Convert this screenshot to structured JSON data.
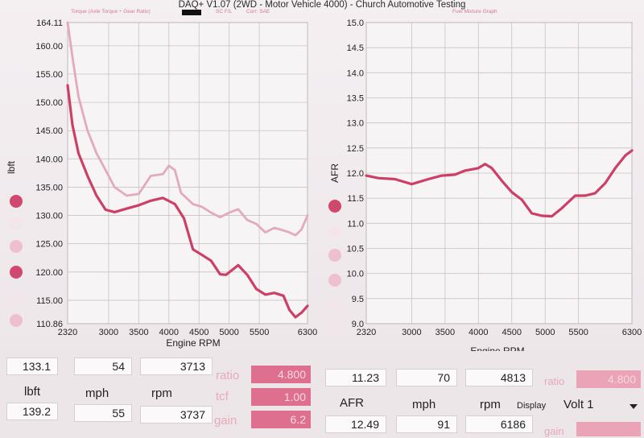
{
  "header": {
    "title": "DAQ+ V1.07 (2WD - Motor Vehicle 4000) - Church Automotive Testing",
    "left_subtitle": "Torque (Axle Torque ÷ Gear Ratio)",
    "left_subtitle2": "SC F/L",
    "left_subtitle3": "Corr: SAE",
    "right_subtitle": "Fuel Mixture Graph"
  },
  "colors": {
    "primary": "#cc3f66",
    "secondary": "#e2aabb",
    "accent_box": "#df6f8e",
    "grid": "#c9c2c5"
  },
  "chart_data": [
    {
      "type": "line",
      "ylabel": "lbft",
      "xlabel": "Engine RPM",
      "ylim": [
        110.86,
        164.11
      ],
      "xlim": [
        2320,
        6300
      ],
      "y_ticks": [
        "164.11",
        "160.00",
        "155.00",
        "150.00",
        "145.00",
        "140.00",
        "135.00",
        "130.00",
        "125.00",
        "120.00",
        "115.00",
        "110.86"
      ],
      "x_ticks": [
        "2320",
        "3000",
        "3500",
        "4000",
        "4500",
        "5000",
        "5500",
        "6300"
      ],
      "series": [
        {
          "color": "#cc3f66",
          "points": [
            [
              2320,
              153
            ],
            [
              2400,
              146
            ],
            [
              2500,
              141
            ],
            [
              2650,
              137
            ],
            [
              2800,
              133.5
            ],
            [
              2950,
              131
            ],
            [
              3100,
              130.6
            ],
            [
              3300,
              131.2
            ],
            [
              3500,
              131.8
            ],
            [
              3700,
              132.6
            ],
            [
              3900,
              133.1
            ],
            [
              4100,
              132
            ],
            [
              4250,
              129.5
            ],
            [
              4400,
              124
            ],
            [
              4550,
              123
            ],
            [
              4700,
              122
            ],
            [
              4850,
              119.6
            ],
            [
              4950,
              119.5
            ],
            [
              5150,
              121.2
            ],
            [
              5300,
              119.5
            ],
            [
              5450,
              117
            ],
            [
              5600,
              116
            ],
            [
              5750,
              116.3
            ],
            [
              5900,
              115.8
            ],
            [
              6000,
              113.3
            ],
            [
              6100,
              112
            ],
            [
              6200,
              112.8
            ],
            [
              6300,
              114
            ]
          ]
        },
        {
          "color": "#e2aabb",
          "points": [
            [
              2320,
              164.11
            ],
            [
              2400,
              158
            ],
            [
              2500,
              151
            ],
            [
              2650,
              145
            ],
            [
              2800,
              141
            ],
            [
              2950,
              138
            ],
            [
              3100,
              135
            ],
            [
              3300,
              133.5
            ],
            [
              3500,
              133.8
            ],
            [
              3700,
              137
            ],
            [
              3900,
              137.3
            ],
            [
              4000,
              138.8
            ],
            [
              4100,
              138
            ],
            [
              4200,
              134
            ],
            [
              4400,
              132
            ],
            [
              4550,
              131.5
            ],
            [
              4700,
              130.5
            ],
            [
              4850,
              129.7
            ],
            [
              5000,
              130.5
            ],
            [
              5150,
              131.1
            ],
            [
              5300,
              129.2
            ],
            [
              5450,
              128.5
            ],
            [
              5600,
              127
            ],
            [
              5750,
              127.8
            ],
            [
              5850,
              127.5
            ],
            [
              6000,
              127
            ],
            [
              6100,
              126.5
            ],
            [
              6200,
              127.5
            ],
            [
              6300,
              130
            ]
          ]
        }
      ]
    },
    {
      "type": "line",
      "ylabel": "AFR",
      "xlabel": "Engine RPM",
      "ylim": [
        9.0,
        15.0
      ],
      "xlim": [
        2320,
        6300
      ],
      "y_ticks": [
        "15.0",
        "14.5",
        "14.0",
        "13.5",
        "13.0",
        "12.5",
        "12.0",
        "11.5",
        "11.0",
        "10.5",
        "10.0",
        "9.5",
        "9.0"
      ],
      "x_ticks": [
        "2320",
        "3000",
        "3500",
        "4000",
        "4500",
        "5000",
        "5500",
        "6300"
      ],
      "series": [
        {
          "color": "#cc3f66",
          "points": [
            [
              2320,
              11.95
            ],
            [
              2500,
              11.9
            ],
            [
              2750,
              11.88
            ],
            [
              3000,
              11.78
            ],
            [
              3250,
              11.88
            ],
            [
              3450,
              11.95
            ],
            [
              3650,
              11.97
            ],
            [
              3800,
              12.05
            ],
            [
              4000,
              12.1
            ],
            [
              4100,
              12.18
            ],
            [
              4200,
              12.1
            ],
            [
              4350,
              11.85
            ],
            [
              4500,
              11.62
            ],
            [
              4650,
              11.47
            ],
            [
              4800,
              11.2
            ],
            [
              4950,
              11.15
            ],
            [
              5100,
              11.14
            ],
            [
              5250,
              11.3
            ],
            [
              5450,
              11.55
            ],
            [
              5600,
              11.55
            ],
            [
              5750,
              11.6
            ],
            [
              5900,
              11.8
            ],
            [
              6050,
              12.1
            ],
            [
              6200,
              12.35
            ],
            [
              6300,
              12.45
            ]
          ]
        }
      ]
    }
  ],
  "readouts": {
    "left": {
      "row1": [
        "133.1",
        "54",
        "3713"
      ],
      "units": [
        "lbft",
        "mph",
        "rpm"
      ],
      "row2": [
        "139.2",
        "55",
        "3737"
      ],
      "params": [
        {
          "label": "ratio",
          "value": "4.800"
        },
        {
          "label": "tcf",
          "value": "1.00"
        },
        {
          "label": "gain",
          "value": "6.2"
        }
      ]
    },
    "right": {
      "row1": [
        "11.23",
        "70",
        "4813"
      ],
      "units": [
        "AFR",
        "mph",
        "rpm"
      ],
      "row2": [
        "12.49",
        "91",
        "6186"
      ],
      "params": [
        {
          "label": "ratio",
          "value": "4.800"
        },
        {
          "label": "gain",
          "value": ""
        }
      ],
      "display_label": "Display",
      "display_value": "Volt 1"
    }
  }
}
